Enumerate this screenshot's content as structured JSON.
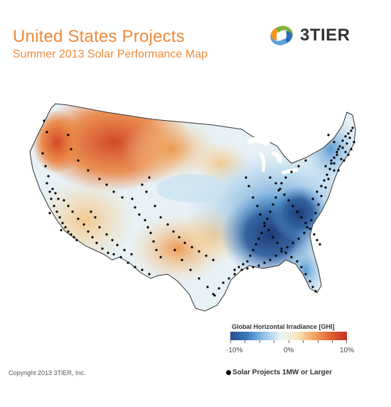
{
  "header": {
    "title": "United States Projects",
    "subtitle": "Summer 2013 Solar Performance Map"
  },
  "logo": {
    "text": "3TIER",
    "icon": "3tier-swirl-logo",
    "colors": [
      "#f7941d",
      "#2a6fb8",
      "#7fb539"
    ]
  },
  "map": {
    "region": "Contiguous United States",
    "variable": "Global Horizontal Irradiance anomaly",
    "marker": "solar-project-dot",
    "colors": {
      "strong_negative": "#23427e",
      "negative": "#4d8fcc",
      "slight_negative": "#a9d2ec",
      "neutral": "#eef5f8",
      "slight_positive": "#f6d9a8",
      "positive": "#ee9a52",
      "strong_positive": "#c83a24"
    }
  },
  "legend": {
    "title": "Global Horizontal Irradiance [GHI]",
    "min_label": "-10%",
    "mid_label": "0%",
    "max_label": "10%",
    "range": [
      -10,
      10
    ]
  },
  "footer": {
    "copyright": "Copyright  2013 3TIER, Inc.",
    "projects_label": "Solar Projects 1MW or Larger"
  }
}
